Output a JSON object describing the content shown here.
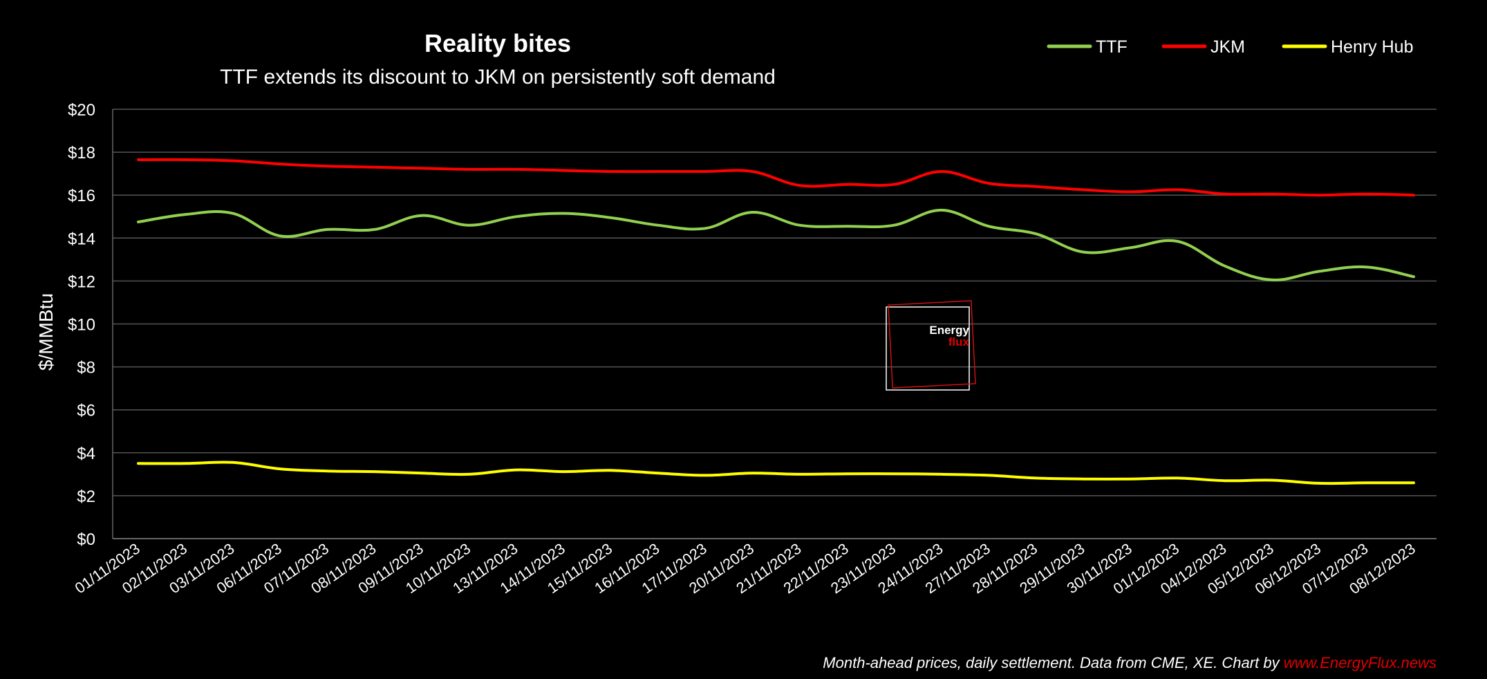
{
  "chart_data": {
    "type": "line",
    "title": "Reality bites",
    "subtitle": "TTF extends its discount to JKM on persistently soft demand",
    "ylabel": "$/MMBtu",
    "xlabel": "",
    "ylim": [
      0,
      20
    ],
    "yticks": [
      0,
      2,
      4,
      6,
      8,
      10,
      12,
      14,
      16,
      18,
      20
    ],
    "ytick_labels": [
      "$0",
      "$2",
      "$4",
      "$6",
      "$8",
      "$10",
      "$12",
      "$14",
      "$16",
      "$18",
      "$20"
    ],
    "grid": true,
    "legend_position": "top-right",
    "categories": [
      "01/11/2023",
      "02/11/2023",
      "03/11/2023",
      "06/11/2023",
      "07/11/2023",
      "08/11/2023",
      "09/11/2023",
      "10/11/2023",
      "13/11/2023",
      "14/11/2023",
      "15/11/2023",
      "16/11/2023",
      "17/11/2023",
      "20/11/2023",
      "21/11/2023",
      "22/11/2023",
      "23/11/2023",
      "24/11/2023",
      "27/11/2023",
      "28/11/2023",
      "29/11/2023",
      "30/11/2023",
      "01/12/2023",
      "04/12/2023",
      "05/12/2023",
      "06/12/2023",
      "07/12/2023",
      "08/12/2023"
    ],
    "series": [
      {
        "name": "TTF",
        "color": "#92d050",
        "values": [
          14.75,
          15.1,
          15.15,
          14.1,
          14.4,
          14.4,
          15.05,
          14.6,
          15.0,
          15.15,
          14.95,
          14.6,
          14.45,
          15.2,
          14.6,
          14.55,
          14.6,
          15.3,
          14.55,
          14.2,
          13.35,
          13.55,
          13.85,
          12.7,
          12.05,
          12.45,
          12.65,
          12.2
        ]
      },
      {
        "name": "JKM",
        "color": "#ff0000",
        "values": [
          17.65,
          17.65,
          17.6,
          17.45,
          17.35,
          17.3,
          17.25,
          17.2,
          17.2,
          17.15,
          17.1,
          17.1,
          17.1,
          17.1,
          16.45,
          16.5,
          16.5,
          17.1,
          16.55,
          16.4,
          16.25,
          16.15,
          16.25,
          16.05,
          16.05,
          16.0,
          16.05,
          16.0
        ]
      },
      {
        "name": "Henry Hub",
        "color": "#ffff00",
        "values": [
          3.5,
          3.5,
          3.55,
          3.25,
          3.15,
          3.12,
          3.05,
          3.0,
          3.2,
          3.12,
          3.18,
          3.05,
          2.95,
          3.05,
          3.0,
          3.02,
          3.02,
          3.0,
          2.95,
          2.82,
          2.78,
          2.78,
          2.82,
          2.7,
          2.72,
          2.58,
          2.6,
          2.6
        ]
      }
    ],
    "footer_text": "Month-ahead prices, daily settlement. Data from CME, XE. Chart by ",
    "footer_link": "www.EnergyFlux.news",
    "watermark": {
      "line1": "Energy",
      "line2": "flux"
    }
  }
}
